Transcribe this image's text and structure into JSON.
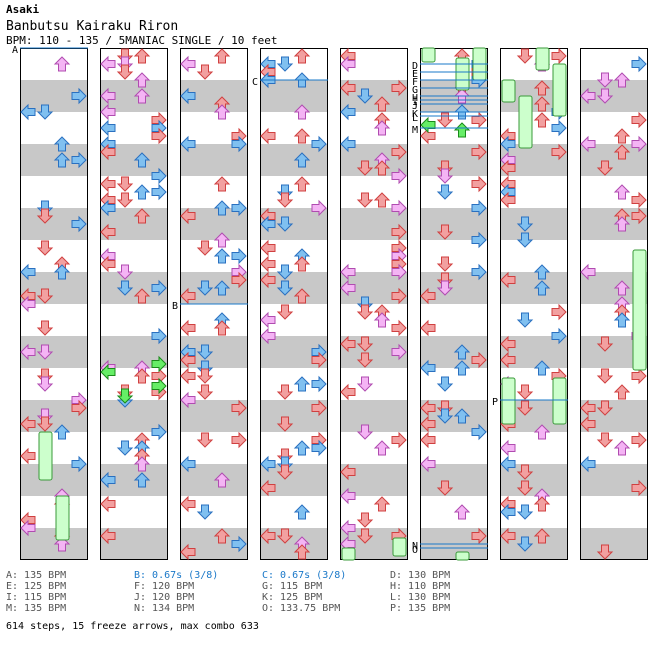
{
  "song": {
    "artist": "Asaki",
    "title": "Banbutsu Kairaku Riron",
    "meta": "BPM: 110 - 135 / 5MANIAC SINGLE / 10 feet"
  },
  "chart_data": {
    "type": "step-chart",
    "title": "Banbutsu Kairaku Riron",
    "difficulty": "SINGLE 10 feet",
    "bpm_range": [
      110,
      135
    ],
    "columns": 8,
    "marker_labels": [
      {
        "label": "A",
        "col": 0,
        "beat": 0
      },
      {
        "label": "B",
        "col": 2,
        "beat": 16
      },
      {
        "label": "C",
        "col": 3,
        "beat": 2
      },
      {
        "label": "D",
        "col": 5,
        "beat": 1
      },
      {
        "label": "E",
        "col": 5,
        "beat": 1.5
      },
      {
        "label": "F",
        "col": 5,
        "beat": 2
      },
      {
        "label": "G",
        "col": 5,
        "beat": 2.5
      },
      {
        "label": "H",
        "col": 5,
        "beat": 3
      },
      {
        "label": "I",
        "col": 5,
        "beat": 3.25
      },
      {
        "label": "J",
        "col": 5,
        "beat": 3.5
      },
      {
        "label": "K",
        "col": 5,
        "beat": 4
      },
      {
        "label": "L",
        "col": 5,
        "beat": 4.25
      },
      {
        "label": "M",
        "col": 5,
        "beat": 5
      },
      {
        "label": "N",
        "col": 5,
        "beat": 31
      },
      {
        "label": "O",
        "col": 5,
        "beat": 31.25
      },
      {
        "label": "P",
        "col": 6,
        "beat": 22
      }
    ],
    "bpm_changes": [
      {
        "label": "A",
        "text": "135 BPM",
        "kind": "bpm"
      },
      {
        "label": "B",
        "text": "0.67s (3/8)",
        "kind": "stop"
      },
      {
        "label": "C",
        "text": "0.67s (3/8)",
        "kind": "stop"
      },
      {
        "label": "D",
        "text": "130 BPM",
        "kind": "bpm"
      },
      {
        "label": "E",
        "text": "125 BPM",
        "kind": "bpm"
      },
      {
        "label": "F",
        "text": "120 BPM",
        "kind": "bpm"
      },
      {
        "label": "G",
        "text": "115 BPM",
        "kind": "bpm"
      },
      {
        "label": "H",
        "text": "110 BPM",
        "kind": "bpm"
      },
      {
        "label": "I",
        "text": "115 BPM",
        "kind": "bpm"
      },
      {
        "label": "J",
        "text": "120 BPM",
        "kind": "bpm"
      },
      {
        "label": "K",
        "text": "125 BPM",
        "kind": "bpm"
      },
      {
        "label": "L",
        "text": "130 BPM",
        "kind": "bpm"
      },
      {
        "label": "M",
        "text": "135 BPM",
        "kind": "bpm"
      },
      {
        "label": "N",
        "text": "134 BPM",
        "kind": "bpm"
      },
      {
        "label": "O",
        "text": "133.75 BPM",
        "kind": "bpm"
      },
      {
        "label": "P",
        "text": "135 BPM",
        "kind": "bpm"
      }
    ],
    "steps": 614,
    "freeze_arrows": 15,
    "max_combo": 633,
    "colors": {
      "stripe": "#c8c8c8",
      "quarter_fill": "#f2a0a0",
      "quarter_stroke": "#d04040",
      "eighth_fill": "#80c0f0",
      "eighth_stroke": "#2a70c0",
      "sixteenth_fill": "#f4b4f4",
      "sixteenth_stroke": "#b04cb0",
      "shock_fill": "#66ee66",
      "shock_stroke": "#1a8a1a",
      "freeze_fill": "#ccffcc",
      "freeze_stroke": "#3a9a3a",
      "stop_text": "#1a78c8"
    }
  },
  "legend_summary": "614 steps, 15 freeze arrows, max combo 633"
}
